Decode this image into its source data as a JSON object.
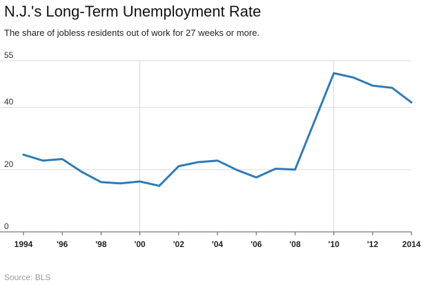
{
  "chart_data": {
    "type": "line",
    "title": "N.J.'s Long-Term Unemployment Rate",
    "subtitle": "The share of jobless residents out of work for 27 weeks or more.",
    "source": "Source: BLS",
    "xlabel": "",
    "ylabel": "",
    "xlim": [
      1994,
      2014
    ],
    "ylim": [
      0,
      55
    ],
    "yticks": [
      0,
      20,
      40,
      55
    ],
    "ytick_labels": [
      "0",
      "20",
      "40",
      "55"
    ],
    "xticks": [
      1994,
      1996,
      1998,
      2000,
      2002,
      2004,
      2006,
      2008,
      2010,
      2012,
      2014
    ],
    "xtick_labels": [
      "1994",
      "'96",
      "'98",
      "'00",
      "'02",
      "'04",
      "'06",
      "'08",
      "'10",
      "'12",
      "2014"
    ],
    "grid": "horizontal",
    "vertical_reference_lines": [
      2000,
      2010
    ],
    "series_color": "#2e7bb6",
    "series": [
      {
        "x": [
          1994,
          1995,
          1996,
          1997,
          1998,
          1999,
          2000,
          2001,
          2002,
          2003,
          2004,
          2005,
          2006,
          2007,
          2008,
          2009,
          2010,
          2011,
          2012,
          2013,
          2014
        ],
        "values": [
          24.8,
          22.9,
          23.4,
          19.3,
          16.0,
          15.6,
          16.2,
          14.8,
          21.1,
          22.4,
          22.9,
          19.9,
          17.5,
          20.3,
          20.0,
          35.5,
          51.0,
          49.6,
          47.0,
          46.3,
          41.6
        ]
      }
    ]
  }
}
